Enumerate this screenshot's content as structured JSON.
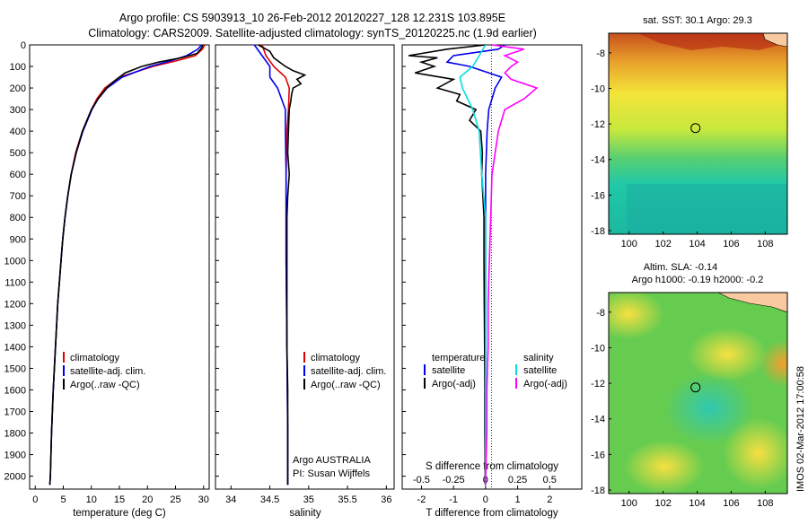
{
  "header": {
    "line1": "Argo profile: CS 5903913_10 26-Feb-2012 20120227_128 12.231S 103.895E",
    "line2": "Climatology: CARS2009. Satellite-adjusted climatology: synTS_20120225.nc (1.9d earlier)"
  },
  "footer": {
    "argo_country": "Argo AUSTRALIA",
    "pi": "PI: Susan Wijffels",
    "imos_stamp": "IMOS 02-Mar-2012 17:00:58"
  },
  "colors": {
    "climatology": "#e00000",
    "satellite": "#0000ee",
    "argo": "#000000",
    "sal_satellite": "#00e0e0",
    "sal_argo": "#ff00ff"
  },
  "legends": {
    "profile": [
      "climatology",
      "satellite-adj. clim.",
      "Argo(..raw -QC)"
    ],
    "diff": {
      "temperature_title": "temperature",
      "salinity_title": "salinity",
      "items": [
        "satellite",
        "Argo(-adj)"
      ]
    }
  },
  "chart_data": [
    {
      "type": "line",
      "panel": "temperature",
      "xlabel": "temperature (deg C)",
      "xlim": [
        -1,
        31
      ],
      "ylim": [
        2060,
        0
      ],
      "xticks": [
        "0",
        "5",
        "10",
        "15",
        "20",
        "25",
        "30"
      ],
      "yticks": [
        "0",
        "100",
        "200",
        "300",
        "400",
        "500",
        "600",
        "700",
        "800",
        "900",
        "1000",
        "1100",
        "1200",
        "1300",
        "1400",
        "1500",
        "1600",
        "1700",
        "1800",
        "1900",
        "2000"
      ],
      "series": [
        {
          "name": "climatology",
          "depth": [
            0,
            20,
            50,
            75,
            100,
            150,
            200,
            250,
            300,
            400,
            500,
            600,
            700,
            800,
            900,
            1000,
            1200,
            1400,
            1600,
            1800,
            2000,
            2040
          ],
          "values": [
            30.2,
            29.8,
            28.5,
            25,
            21,
            15,
            12.4,
            11,
            10,
            8.4,
            7.2,
            6.4,
            5.8,
            5.3,
            4.9,
            4.6,
            4,
            3.6,
            3.2,
            2.9,
            2.7,
            2.6
          ]
        },
        {
          "name": "satellite-adj. clim.",
          "depth": [
            0,
            20,
            50,
            75,
            100,
            150,
            200,
            250,
            300,
            400,
            500,
            600,
            700,
            800,
            900,
            1000,
            1200,
            1400,
            1600,
            1800,
            2000,
            2040
          ],
          "values": [
            29.6,
            29,
            27,
            24,
            20.5,
            15.5,
            12.8,
            11.2,
            10.1,
            8.5,
            7.3,
            6.4,
            5.8,
            5.3,
            4.9,
            4.6,
            4,
            3.6,
            3.2,
            2.9,
            2.7,
            2.6
          ]
        },
        {
          "name": "Argo(..raw -QC)",
          "depth": [
            0,
            20,
            40,
            60,
            80,
            100,
            130,
            170,
            200,
            250,
            300,
            400,
            500,
            600,
            700,
            800,
            900,
            1000,
            1200,
            1400,
            1600,
            1800,
            2000,
            2040
          ],
          "values": [
            29.9,
            29.5,
            28.8,
            26,
            22,
            19,
            16,
            14,
            12.7,
            11.2,
            10,
            8.4,
            7.3,
            6.4,
            5.8,
            5.3,
            4.9,
            4.6,
            4,
            3.6,
            3.2,
            2.9,
            2.7,
            2.6
          ]
        }
      ]
    },
    {
      "type": "line",
      "panel": "salinity",
      "xlabel": "salinity",
      "xlim": [
        33.8,
        36.1
      ],
      "ylim": [
        2060,
        0
      ],
      "xticks": [
        "34",
        "34.5",
        "35",
        "35.5",
        "36"
      ],
      "series": [
        {
          "name": "climatology",
          "depth": [
            0,
            50,
            100,
            150,
            200,
            300,
            400,
            600,
            800,
            1000,
            1400,
            1800,
            2040
          ],
          "values": [
            34.4,
            34.45,
            34.55,
            34.7,
            34.75,
            34.74,
            34.72,
            34.71,
            34.71,
            34.71,
            34.72,
            34.73,
            34.73
          ]
        },
        {
          "name": "satellite-adj. clim.",
          "depth": [
            0,
            50,
            100,
            150,
            200,
            300,
            400,
            600,
            800,
            1000,
            1400,
            1800,
            2040
          ],
          "values": [
            34.3,
            34.4,
            34.5,
            34.5,
            34.6,
            34.7,
            34.7,
            34.71,
            34.71,
            34.71,
            34.72,
            34.73,
            34.73
          ]
        },
        {
          "name": "Argo(..raw -QC)",
          "depth": [
            0,
            30,
            60,
            100,
            120,
            140,
            160,
            180,
            200,
            230,
            260,
            300,
            400,
            500,
            600,
            700,
            800,
            1000,
            1200,
            1400,
            1600,
            1800,
            2000,
            2040
          ],
          "values": [
            34.35,
            34.5,
            34.55,
            34.7,
            34.8,
            34.95,
            34.85,
            34.9,
            34.8,
            34.78,
            34.77,
            34.75,
            34.74,
            34.73,
            34.75,
            34.73,
            34.72,
            34.72,
            34.72,
            34.72,
            34.73,
            34.73,
            34.73,
            34.73
          ]
        }
      ]
    },
    {
      "type": "line",
      "panel": "difference",
      "xlabel": "T difference from climatology",
      "top_label": "S difference from climatology",
      "xlim": [
        -2.6,
        3.0
      ],
      "ylim": [
        2060,
        0
      ],
      "xticks": [
        "-2",
        "-1",
        "0",
        "1",
        "2"
      ],
      "sticks": [
        "-0.5",
        "-0.25",
        "0",
        "0.25",
        "0.5"
      ],
      "series": [
        {
          "name": "temperature satellite",
          "depth": [
            0,
            20,
            50,
            80,
            100,
            150,
            200,
            300,
            400,
            600,
            800,
            1000,
            1400,
            1800,
            2040
          ],
          "values": [
            0.6,
            0.4,
            -1.0,
            -1.2,
            -0.5,
            0.5,
            0.3,
            0.1,
            0.05,
            0.0,
            0.0,
            0.0,
            0.0,
            0.0,
            0.0
          ]
        },
        {
          "name": "temperature Argo(-adj)",
          "depth": [
            0,
            20,
            50,
            60,
            80,
            100,
            130,
            160,
            200,
            230,
            260,
            300,
            350,
            400,
            500,
            600,
            800,
            1000,
            1200,
            1400,
            1600,
            1800,
            2000,
            2040
          ],
          "values": [
            0.0,
            -1.2,
            -2.4,
            -1.5,
            -2.0,
            -1.6,
            -2.2,
            -1.0,
            -1.5,
            -0.8,
            -0.9,
            -0.3,
            -0.5,
            -0.15,
            -0.1,
            -0.12,
            -0.05,
            -0.05,
            -0.04,
            -0.03,
            -0.02,
            -0.02,
            -0.01,
            -0.01
          ]
        },
        {
          "name": "salinity satellite",
          "depth": [
            0,
            100,
            150,
            200,
            300,
            400,
            600,
            800,
            1000,
            1400,
            1800,
            2040
          ],
          "values": [
            0.0,
            -0.1,
            -0.2,
            -0.18,
            -0.1,
            -0.05,
            -0.03,
            0.0,
            0.0,
            0.0,
            0.0,
            0.0
          ]
        },
        {
          "name": "salinity Argo(-adj)",
          "depth": [
            0,
            20,
            50,
            80,
            100,
            130,
            160,
            200,
            250,
            300,
            400,
            600,
            800,
            1000,
            1200,
            1400,
            1600,
            1800,
            2000,
            2040
          ],
          "values": [
            0.05,
            0.3,
            0.15,
            0.25,
            0.2,
            0.15,
            0.2,
            0.4,
            0.3,
            0.15,
            0.1,
            0.05,
            0.04,
            0.03,
            0.02,
            0.02,
            0.01,
            0.01,
            0.0,
            0.0
          ]
        }
      ]
    },
    {
      "type": "heatmap",
      "panel": "sst_map",
      "title": "sat. SST: 30.1  Argo: 29.3",
      "xlim": [
        98.8,
        109.3
      ],
      "ylim": [
        -18.2,
        -6.9
      ],
      "xticks": [
        "100",
        "102",
        "104",
        "106",
        "108"
      ],
      "yticks": [
        "-8",
        "-10",
        "-12",
        "-14",
        "-16",
        "-18"
      ],
      "float_position": [
        103.9,
        -12.23
      ]
    },
    {
      "type": "heatmap",
      "panel": "sla_map",
      "title": "Altim. SLA: -0.14",
      "subtitle": "Argo h1000: -0.19 h2000: -0.2",
      "xlim": [
        98.8,
        109.3
      ],
      "ylim": [
        -18.2,
        -6.9
      ],
      "xticks": [
        "100",
        "102",
        "104",
        "106",
        "108"
      ],
      "yticks": [
        "-8",
        "-10",
        "-12",
        "-14",
        "-16",
        "-18"
      ],
      "float_position": [
        103.9,
        -12.23
      ]
    }
  ]
}
